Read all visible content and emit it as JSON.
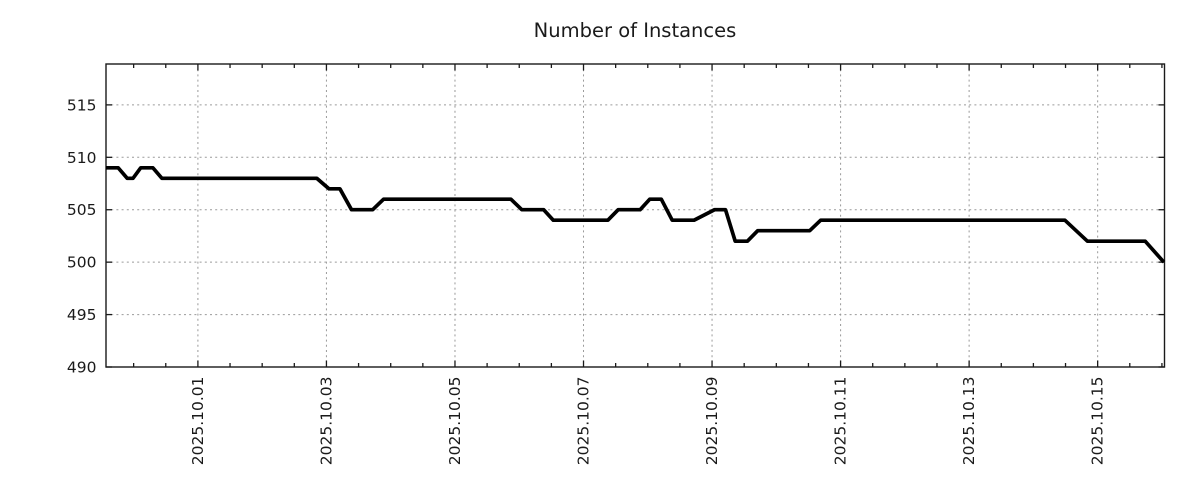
{
  "chart_data": {
    "type": "line",
    "title": "Number of Instances",
    "xlabel": "",
    "ylabel": "",
    "x_unit": "days since 2025-10-01 00:00",
    "x_range_days": [
      -1.43,
      15.04
    ],
    "ylim": [
      490,
      518.9
    ],
    "y_ticks": [
      490,
      495,
      500,
      505,
      510,
      515
    ],
    "x_major_ticks": [
      {
        "d": 0,
        "label": "2025.10.01"
      },
      {
        "d": 2,
        "label": "2025.10.03"
      },
      {
        "d": 4,
        "label": "2025.10.05"
      },
      {
        "d": 6,
        "label": "2025.10.07"
      },
      {
        "d": 8,
        "label": "2025.10.09"
      },
      {
        "d": 10,
        "label": "2025.10.11"
      },
      {
        "d": 12,
        "label": "2025.10.13"
      },
      {
        "d": 14,
        "label": "2025.10.15"
      }
    ],
    "x_minor_tick_interval_days": 0.5,
    "grid": true,
    "legend": false,
    "colors": {
      "line": "#000000",
      "grid": "#9a9a9a",
      "border": "#1a1a1a",
      "text": "#1a1a1a",
      "background": "#ffffff"
    },
    "series": [
      {
        "name": "Number of Instances",
        "color": "#000000",
        "points": [
          [
            -1.43,
            509
          ],
          [
            -1.24,
            509
          ],
          [
            -1.1,
            508
          ],
          [
            -1.01,
            508
          ],
          [
            -0.89,
            509
          ],
          [
            -0.7,
            509
          ],
          [
            -0.56,
            508
          ],
          [
            1.85,
            508
          ],
          [
            2.04,
            507
          ],
          [
            2.21,
            507
          ],
          [
            2.39,
            505
          ],
          [
            2.72,
            505
          ],
          [
            2.89,
            506
          ],
          [
            4.87,
            506
          ],
          [
            5.04,
            505
          ],
          [
            5.38,
            505
          ],
          [
            5.53,
            504
          ],
          [
            6.38,
            504
          ],
          [
            6.54,
            505
          ],
          [
            6.88,
            505
          ],
          [
            7.03,
            506
          ],
          [
            7.21,
            506
          ],
          [
            7.38,
            504
          ],
          [
            7.72,
            504
          ],
          [
            8.04,
            505
          ],
          [
            8.21,
            505
          ],
          [
            8.36,
            502
          ],
          [
            8.55,
            502
          ],
          [
            8.71,
            503
          ],
          [
            9.52,
            503
          ],
          [
            9.69,
            504
          ],
          [
            13.49,
            504
          ],
          [
            13.84,
            502
          ],
          [
            14.74,
            502
          ],
          [
            15.03,
            500
          ]
        ]
      }
    ]
  }
}
